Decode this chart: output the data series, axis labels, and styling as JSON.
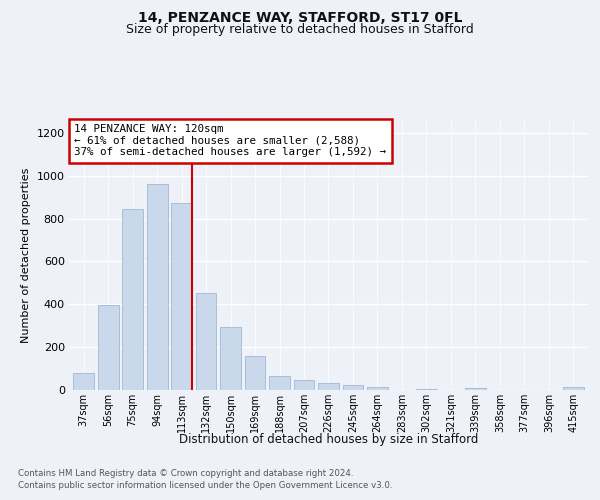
{
  "title1": "14, PENZANCE WAY, STAFFORD, ST17 0FL",
  "title2": "Size of property relative to detached houses in Stafford",
  "xlabel": "Distribution of detached houses by size in Stafford",
  "ylabel": "Number of detached properties",
  "categories": [
    "37sqm",
    "56sqm",
    "75sqm",
    "94sqm",
    "113sqm",
    "132sqm",
    "150sqm",
    "169sqm",
    "188sqm",
    "207sqm",
    "226sqm",
    "245sqm",
    "264sqm",
    "283sqm",
    "302sqm",
    "321sqm",
    "339sqm",
    "358sqm",
    "377sqm",
    "396sqm",
    "415sqm"
  ],
  "values": [
    80,
    395,
    845,
    960,
    875,
    455,
    295,
    160,
    65,
    48,
    32,
    22,
    14,
    0,
    5,
    0,
    8,
    0,
    0,
    0,
    12
  ],
  "bar_color": "#c9d9eb",
  "bar_edge_color": "#a0b8d0",
  "marker_line_color": "#cc0000",
  "annotation_line1": "14 PENZANCE WAY: 120sqm",
  "annotation_line2": "← 61% of detached houses are smaller (2,588)",
  "annotation_line3": "37% of semi-detached houses are larger (1,592) →",
  "annotation_box_color": "#ffffff",
  "annotation_box_edge_color": "#cc0000",
  "footnote1": "Contains HM Land Registry data © Crown copyright and database right 2024.",
  "footnote2": "Contains public sector information licensed under the Open Government Licence v3.0.",
  "ylim": [
    0,
    1260
  ],
  "background_color": "#eef2f8",
  "grid_color": "#ffffff",
  "title1_fontsize": 10,
  "title2_fontsize": 9
}
